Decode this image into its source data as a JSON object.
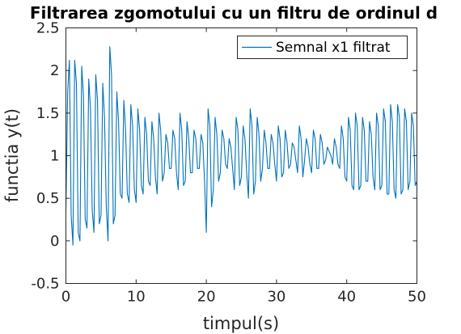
{
  "chart_data": {
    "type": "line",
    "title": "Filtrarea zgomotului cu un filtru de ordinul d",
    "xlabel": "timpul(s)",
    "ylabel": "functia y(t)",
    "xlim": [
      0,
      50
    ],
    "ylim": [
      -0.5,
      2.5
    ],
    "xticks": [
      0,
      10,
      20,
      30,
      40,
      50
    ],
    "xtick_labels": [
      "0",
      "10",
      "20",
      "30",
      "40",
      "50"
    ],
    "yticks": [
      -0.5,
      0,
      0.5,
      1,
      1.5,
      2,
      2.5
    ],
    "ytick_labels": [
      "-0.5",
      "0",
      "0.5",
      "1",
      "1.5",
      "2",
      "2.5"
    ],
    "grid": false,
    "legend_position": "top-right",
    "series": [
      {
        "name": "Semnal x1 filtrat",
        "color": "#0072BD",
        "x": [
          0,
          0.25,
          0.5,
          0.75,
          1,
          1.25,
          1.5,
          1.75,
          2,
          2.25,
          2.5,
          2.75,
          3,
          3.25,
          3.5,
          3.75,
          4,
          4.25,
          4.5,
          4.75,
          5,
          5.25,
          5.5,
          5.75,
          6,
          6.25,
          6.5,
          6.75,
          7,
          7.25,
          7.5,
          7.75,
          8,
          8.25,
          8.5,
          8.75,
          9,
          9.25,
          9.5,
          9.75,
          10,
          10.25,
          10.5,
          10.75,
          11,
          11.25,
          11.5,
          11.75,
          12,
          12.25,
          12.5,
          12.75,
          13,
          13.25,
          13.5,
          13.75,
          14,
          14.25,
          14.5,
          14.75,
          15,
          15.25,
          15.5,
          15.75,
          16,
          16.25,
          16.5,
          16.75,
          17,
          17.25,
          17.5,
          17.75,
          18,
          18.25,
          18.5,
          18.75,
          19,
          19.25,
          19.5,
          19.75,
          20,
          20.25,
          20.5,
          20.75,
          21,
          21.25,
          21.5,
          21.75,
          22,
          22.25,
          22.5,
          22.75,
          23,
          23.25,
          23.5,
          23.75,
          24,
          24.25,
          24.5,
          24.75,
          25,
          25.25,
          25.5,
          25.75,
          26,
          26.25,
          26.5,
          26.75,
          27,
          27.25,
          27.5,
          27.75,
          28,
          28.25,
          28.5,
          28.75,
          29,
          29.25,
          29.5,
          29.75,
          30,
          30.25,
          30.5,
          30.75,
          31,
          31.25,
          31.5,
          31.75,
          32,
          32.25,
          32.5,
          32.75,
          33,
          33.25,
          33.5,
          33.75,
          34,
          34.25,
          34.5,
          34.75,
          35,
          35.25,
          35.5,
          35.75,
          36,
          36.25,
          36.5,
          36.75,
          37,
          37.25,
          37.5,
          37.75,
          38,
          38.25,
          38.5,
          38.75,
          39,
          39.25,
          39.5,
          39.75,
          40,
          40.25,
          40.5,
          40.75,
          41,
          41.25,
          41.5,
          41.75,
          42,
          42.25,
          42.5,
          42.75,
          43,
          43.25,
          43.5,
          43.75,
          44,
          44.25,
          44.5,
          44.75,
          45,
          45.25,
          45.5,
          45.75,
          46,
          46.25,
          46.5,
          46.75,
          47,
          47.25,
          47.5,
          47.75,
          48,
          48.25,
          48.5,
          48.75,
          49,
          49.25,
          49.5,
          49.75,
          50
        ],
        "values": [
          0.35,
          1.75,
          2.12,
          0.3,
          -0.05,
          2.12,
          1.85,
          0.1,
          0.0,
          2.05,
          1.7,
          0.25,
          0.15,
          1.9,
          1.55,
          0.35,
          0.1,
          1.95,
          1.65,
          0.2,
          0.3,
          1.85,
          1.45,
          0.4,
          0.0,
          2.28,
          1.95,
          0.2,
          0.3,
          1.75,
          1.4,
          0.55,
          0.5,
          1.65,
          1.3,
          0.55,
          0.45,
          1.6,
          1.35,
          0.6,
          0.45,
          1.55,
          1.3,
          0.65,
          0.55,
          1.45,
          1.25,
          0.7,
          0.65,
          1.4,
          1.2,
          0.75,
          0.55,
          1.5,
          1.3,
          0.7,
          0.8,
          1.25,
          1.15,
          0.85,
          0.85,
          1.3,
          1.2,
          0.8,
          0.6,
          1.5,
          1.3,
          0.65,
          0.7,
          1.4,
          1.2,
          0.8,
          0.8,
          1.3,
          1.2,
          0.85,
          0.85,
          1.25,
          1.15,
          0.7,
          0.1,
          1.55,
          1.35,
          0.4,
          0.6,
          1.45,
          1.25,
          0.7,
          0.8,
          1.3,
          1.2,
          0.9,
          0.85,
          1.2,
          1.1,
          0.85,
          0.6,
          1.45,
          1.3,
          0.65,
          0.75,
          1.35,
          1.2,
          0.8,
          0.5,
          1.55,
          1.35,
          0.55,
          0.7,
          1.45,
          1.25,
          0.7,
          0.85,
          1.3,
          1.15,
          0.85,
          0.85,
          1.25,
          1.15,
          0.9,
          0.7,
          1.35,
          1.2,
          0.75,
          0.8,
          1.3,
          1.15,
          0.85,
          0.9,
          1.15,
          1.1,
          0.95,
          0.8,
          1.35,
          1.2,
          0.75,
          0.95,
          1.2,
          1.1,
          0.9,
          0.8,
          1.3,
          1.2,
          0.85,
          0.85,
          1.25,
          1.15,
          0.9,
          0.95,
          1.1,
          1.05,
          1.0,
          0.9,
          1.2,
          1.1,
          0.9,
          0.85,
          1.35,
          1.2,
          0.75,
          0.7,
          1.45,
          1.3,
          0.65,
          0.6,
          1.5,
          1.35,
          0.6,
          0.65,
          1.45,
          1.3,
          0.7,
          0.7,
          1.4,
          1.25,
          0.75,
          0.6,
          1.5,
          1.35,
          0.6,
          0.65,
          1.55,
          1.4,
          0.55,
          0.55,
          1.6,
          1.4,
          0.6,
          0.5,
          1.6,
          1.45,
          0.55,
          0.6,
          1.55,
          1.4,
          0.6,
          0.7,
          1.5,
          1.35,
          0.65,
          0.7
        ]
      }
    ]
  }
}
